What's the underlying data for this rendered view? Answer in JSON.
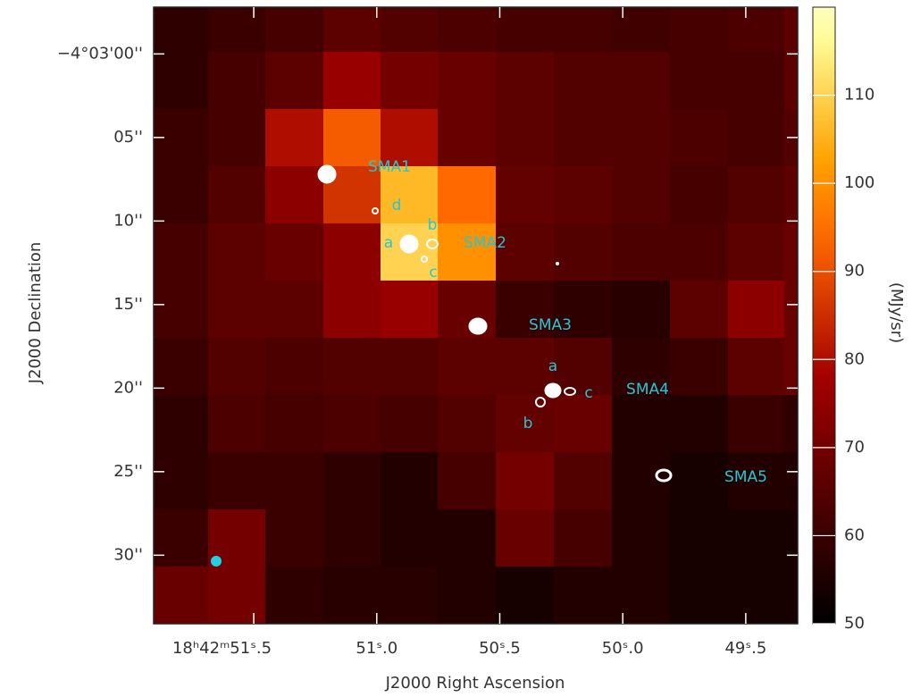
{
  "chart_data": {
    "type": "heatmap",
    "xlabel": "J2000 Right Ascension",
    "ylabel": "J2000 Declination",
    "colorbar_label": "(MJy/sr)",
    "values": [
      [
        58,
        60,
        62,
        66,
        64,
        63,
        62,
        62,
        61,
        62,
        63,
        66
      ],
      [
        58,
        62,
        66,
        76,
        70,
        68,
        66,
        64,
        64,
        62,
        62,
        66
      ],
      [
        60,
        62,
        80,
        92,
        80,
        68,
        66,
        64,
        64,
        63,
        62,
        64
      ],
      [
        60,
        64,
        74,
        86,
        106,
        94,
        67,
        66,
        64,
        62,
        64,
        66
      ],
      [
        62,
        66,
        68,
        74,
        110,
        100,
        66,
        64,
        63,
        63,
        66,
        68
      ],
      [
        62,
        66,
        66,
        74,
        76,
        68,
        60,
        58,
        57,
        66,
        74,
        68
      ],
      [
        60,
        64,
        63,
        64,
        64,
        66,
        66,
        64,
        58,
        60,
        66,
        68
      ],
      [
        58,
        63,
        62,
        63,
        62,
        64,
        67,
        68,
        56,
        56,
        60,
        58
      ],
      [
        58,
        60,
        60,
        58,
        56,
        62,
        70,
        64,
        56,
        54,
        56,
        56
      ],
      [
        60,
        70,
        60,
        58,
        56,
        56,
        68,
        62,
        56,
        54,
        54,
        54
      ],
      [
        68,
        70,
        58,
        57,
        57,
        56,
        54,
        56,
        56,
        54,
        54,
        54
      ]
    ],
    "xlim": [
      51.907,
      49.289
    ],
    "ylim": [
      -14577.2,
      -14614.1
    ],
    "xticks": [
      {
        "value": 51.5,
        "label": "18ʰ42ᵐ51ˢ.5"
      },
      {
        "value": 51.0,
        "label": "51ˢ.0"
      },
      {
        "value": 50.5,
        "label": "50ˢ.5"
      },
      {
        "value": 50.0,
        "label": "50ˢ.0"
      },
      {
        "value": 49.5,
        "label": "49ˢ.5"
      }
    ],
    "yticks": [
      {
        "value": -14580,
        "label": "−4°03'00''"
      },
      {
        "value": -14585,
        "label": "05''"
      },
      {
        "value": -14590,
        "label": "10''"
      },
      {
        "value": -14595,
        "label": "15''"
      },
      {
        "value": -14600,
        "label": "20''"
      },
      {
        "value": -14605,
        "label": "25''"
      },
      {
        "value": -14610,
        "label": "30''"
      }
    ],
    "clim": [
      50,
      120
    ],
    "cticks": [
      50,
      60,
      70,
      80,
      90,
      100,
      110
    ],
    "annotations": [
      "SMA1",
      "d",
      "a",
      "b",
      "SMA2",
      "c",
      "SMA3",
      "a",
      "c",
      "SMA4",
      "b",
      "SMA5"
    ]
  }
}
